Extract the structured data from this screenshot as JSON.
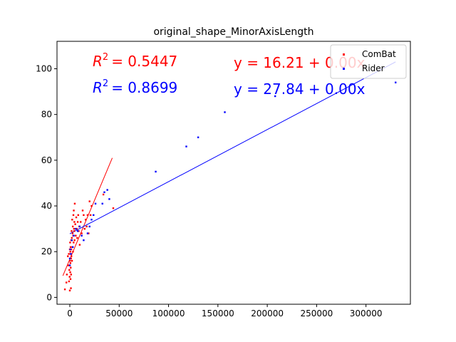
{
  "chart_data": {
    "type": "scatter",
    "title": "original_shape_MinorAxisLength",
    "xlabel": "",
    "ylabel": "",
    "xlim": [
      -13000,
      345000
    ],
    "ylim": [
      -3,
      112
    ],
    "xticks": [
      0,
      50000,
      100000,
      150000,
      200000,
      250000,
      300000
    ],
    "xtick_labels": [
      "0",
      "50000",
      "100000",
      "150000",
      "200000",
      "250000",
      "300000"
    ],
    "yticks": [
      0,
      20,
      40,
      60,
      80,
      100
    ],
    "ytick_labels": [
      "0",
      "20",
      "40",
      "60",
      "80",
      "100"
    ],
    "grid": false,
    "legend_position": "top-right",
    "series": [
      {
        "name": "ComBat",
        "color": "#ff0000",
        "points": [
          [
            -5000,
            3.5
          ],
          [
            -3500,
            6.5
          ],
          [
            -3000,
            10
          ],
          [
            -2000,
            18
          ],
          [
            -1500,
            14
          ],
          [
            -1000,
            19
          ],
          [
            -800,
            7
          ],
          [
            -500,
            12
          ],
          [
            -200,
            9
          ],
          [
            0,
            3
          ],
          [
            0,
            21
          ],
          [
            200,
            16
          ],
          [
            300,
            24
          ],
          [
            400,
            11
          ],
          [
            500,
            20
          ],
          [
            600,
            15
          ],
          [
            700,
            8
          ],
          [
            800,
            22
          ],
          [
            900,
            13
          ],
          [
            1000,
            19
          ],
          [
            1100,
            4
          ],
          [
            1200,
            17
          ],
          [
            1300,
            10
          ],
          [
            1400,
            25
          ],
          [
            1500,
            21
          ],
          [
            1600,
            18
          ],
          [
            1800,
            29
          ],
          [
            2000,
            26
          ],
          [
            2200,
            16
          ],
          [
            2400,
            34
          ],
          [
            2600,
            22
          ],
          [
            2800,
            28
          ],
          [
            3000,
            31
          ],
          [
            3200,
            20
          ],
          [
            3400,
            27
          ],
          [
            3600,
            36
          ],
          [
            3800,
            24
          ],
          [
            4000,
            38
          ],
          [
            4200,
            30
          ],
          [
            4400,
            29
          ],
          [
            4600,
            33
          ],
          [
            4800,
            25
          ],
          [
            5000,
            41
          ],
          [
            5500,
            32
          ],
          [
            6000,
            27
          ],
          [
            6500,
            35
          ],
          [
            7000,
            30
          ],
          [
            7500,
            26
          ],
          [
            8000,
            33
          ],
          [
            8500,
            36
          ],
          [
            9000,
            29
          ],
          [
            9500,
            31
          ],
          [
            10000,
            23
          ],
          [
            11000,
            33
          ],
          [
            12000,
            28
          ],
          [
            13000,
            38
          ],
          [
            14000,
            36
          ],
          [
            15000,
            30
          ],
          [
            16000,
            34
          ],
          [
            17000,
            31
          ],
          [
            18000,
            36
          ],
          [
            19000,
            28
          ],
          [
            20000,
            42
          ],
          [
            21000,
            36
          ],
          [
            22000,
            40
          ],
          [
            34000,
            45
          ],
          [
            44000,
            39
          ]
        ],
        "fit": {
          "x": [
            -7000,
            43000
          ],
          "y": [
            9.5,
            61
          ],
          "r2_label": "R^2 = 0.5447",
          "r2_base": "R",
          "r2_exp": "2",
          "r2_value": "= 0.5447",
          "equation": "y = 16.21 + 0.00x"
        }
      },
      {
        "name": "Rider",
        "color": "#0000ff",
        "points": [
          [
            0,
            14
          ],
          [
            0,
            17
          ],
          [
            500,
            21
          ],
          [
            1000,
            19
          ],
          [
            2000,
            25
          ],
          [
            3000,
            22
          ],
          [
            4000,
            27
          ],
          [
            6000,
            30
          ],
          [
            8000,
            29
          ],
          [
            10000,
            31
          ],
          [
            12000,
            27
          ],
          [
            14000,
            25
          ],
          [
            18000,
            28
          ],
          [
            20000,
            31
          ],
          [
            22000,
            34
          ],
          [
            24000,
            36
          ],
          [
            26000,
            41
          ],
          [
            33000,
            41
          ],
          [
            35000,
            46
          ],
          [
            38000,
            47
          ],
          [
            40000,
            43
          ],
          [
            87000,
            55
          ],
          [
            118000,
            66
          ],
          [
            130000,
            70
          ],
          [
            157000,
            81
          ],
          [
            208000,
            88
          ],
          [
            330000,
            94
          ]
        ],
        "fit": {
          "x": [
            0,
            330000
          ],
          "y": [
            27.84,
            103
          ],
          "r2_label": "R^2 = 0.8699",
          "r2_base": "R",
          "r2_exp": "2",
          "r2_value": "= 0.8699",
          "equation": "y = 27.84 + 0.00x"
        }
      }
    ]
  }
}
